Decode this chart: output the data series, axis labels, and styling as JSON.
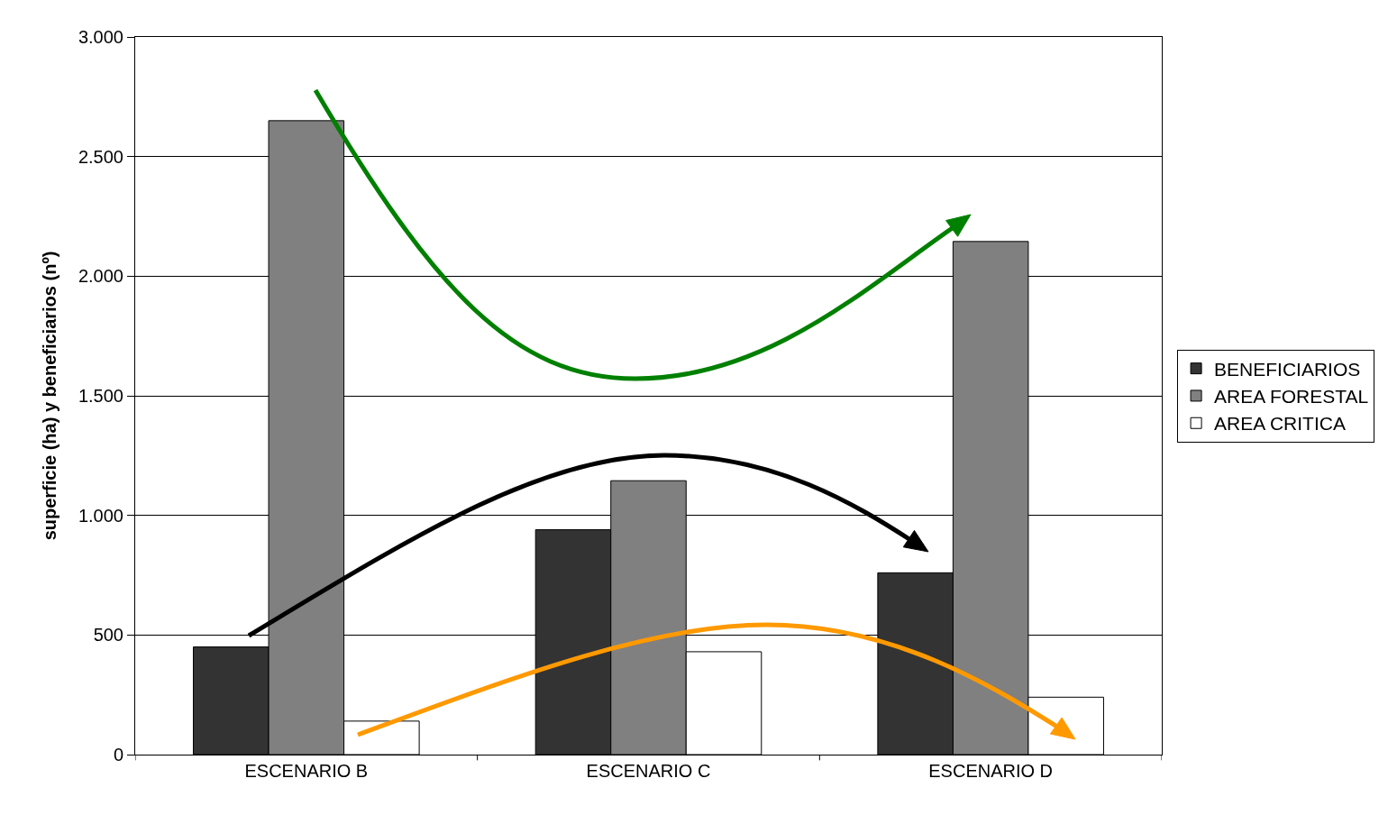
{
  "chart_data": {
    "type": "bar",
    "ylabel": "superficie (ha) y beneficiarios (nº)",
    "categories": [
      "ESCENARIO B",
      "ESCENARIO C",
      "ESCENARIO D"
    ],
    "series": [
      {
        "name": "BENEFICIARIOS",
        "color": "#333333",
        "values": [
          450,
          940,
          760
        ]
      },
      {
        "name": "AREA FORESTAL",
        "color": "#808080",
        "values": [
          2650,
          1145,
          2145
        ]
      },
      {
        "name": "AREA CRITICA",
        "color": "#ffffff",
        "values": [
          140,
          430,
          240
        ]
      }
    ],
    "ylim": [
      0,
      3000
    ],
    "yticks": [
      {
        "value": 0,
        "label": "0"
      },
      {
        "value": 500,
        "label": "500"
      },
      {
        "value": 1000,
        "label": "1.000"
      },
      {
        "value": 1500,
        "label": "1.500"
      },
      {
        "value": 2000,
        "label": "2.000"
      },
      {
        "value": 2500,
        "label": "2.500"
      },
      {
        "value": 3000,
        "label": "3.000"
      }
    ],
    "grid": "y",
    "legend": "right"
  }
}
